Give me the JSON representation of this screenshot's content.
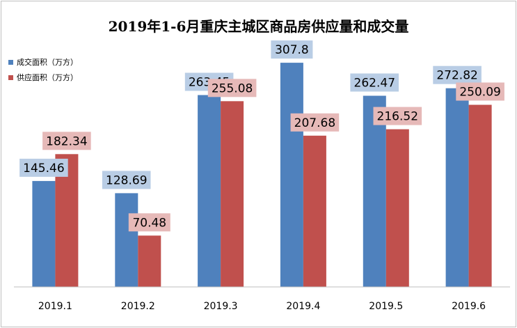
{
  "chart_data": {
    "type": "bar",
    "title": "2019年1-6月重庆主城区商品房供应量和成交量",
    "categories": [
      "2019.1",
      "2019.2",
      "2019.3",
      "2019.4",
      "2019.5",
      "2019.6"
    ],
    "series": [
      {
        "name": "成交面积（万方）",
        "values": [
          145.46,
          128.69,
          263.45,
          307.8,
          262.47,
          272.82
        ],
        "color": "#4f81bd",
        "label_bg": "#b9cde5"
      },
      {
        "name": "供应面积（万方）",
        "values": [
          182.34,
          70.48,
          255.08,
          207.68,
          216.52,
          250.09
        ],
        "color": "#c0504d",
        "label_bg": "#e6b9b8"
      }
    ],
    "data_labels": [
      [
        "145.46",
        "128.69",
        "263.45",
        "307.8",
        "262.47",
        "272.82"
      ],
      [
        "182.34",
        "70.48",
        "255.08",
        "207.68",
        "216.52",
        "250.09"
      ]
    ],
    "ylim": [
      0,
      350
    ],
    "grid": false,
    "legend": "top-left",
    "xlabel": "",
    "ylabel": ""
  }
}
